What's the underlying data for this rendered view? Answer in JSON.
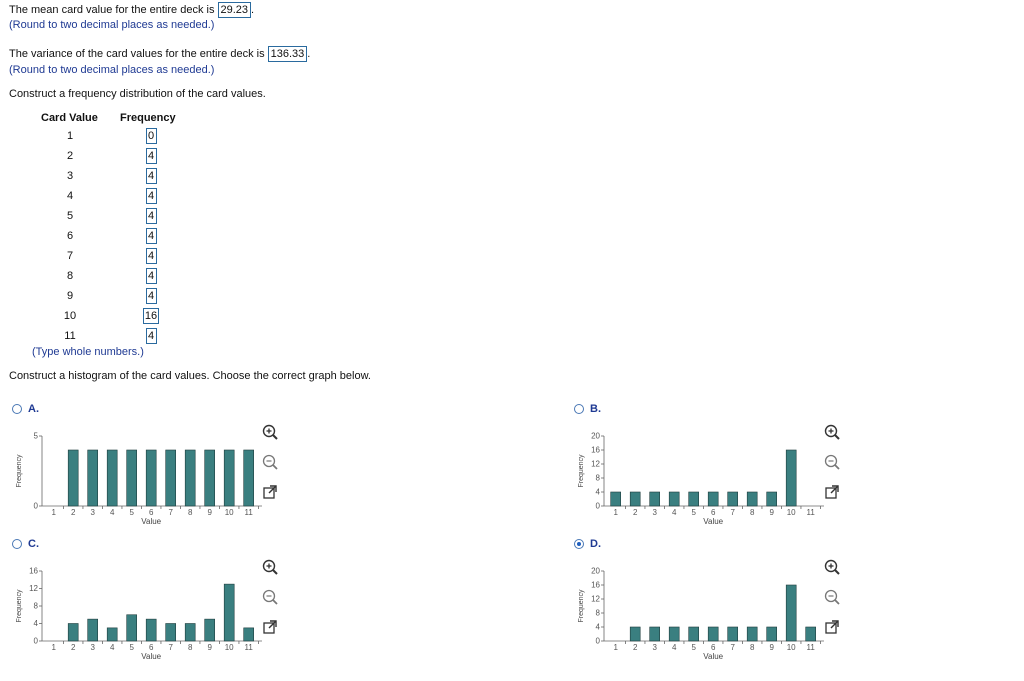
{
  "questions": {
    "mean": {
      "prefix": "The mean card value for the entire deck is",
      "answer": "29.23",
      "suffix": ".",
      "hint": "(Round to two decimal places as needed.)"
    },
    "variance": {
      "prefix": "The variance of the card values for the entire deck is",
      "answer": "136.33",
      "suffix": ".",
      "hint": "(Round to two decimal places as needed.)"
    },
    "freq_prompt": "Construct a frequency distribution of the card values.",
    "freq_hint": "(Type whole numbers.)",
    "hist_prompt": "Construct a histogram of the card values. Choose the correct graph below."
  },
  "frequency_table": {
    "col_value": "Card Value",
    "col_freq": "Frequency",
    "rows": [
      {
        "value": "1",
        "freq": "0"
      },
      {
        "value": "2",
        "freq": "4"
      },
      {
        "value": "3",
        "freq": "4"
      },
      {
        "value": "4",
        "freq": "4"
      },
      {
        "value": "5",
        "freq": "4"
      },
      {
        "value": "6",
        "freq": "4"
      },
      {
        "value": "7",
        "freq": "4"
      },
      {
        "value": "8",
        "freq": "4"
      },
      {
        "value": "9",
        "freq": "4"
      },
      {
        "value": "10",
        "freq": "16"
      },
      {
        "value": "11",
        "freq": "4"
      }
    ]
  },
  "options": [
    {
      "label": "A.",
      "selected": false
    },
    {
      "label": "B.",
      "selected": false
    },
    {
      "label": "C.",
      "selected": false
    },
    {
      "label": "D.",
      "selected": true
    }
  ],
  "icons": [
    "zoom-in-icon",
    "zoom-out-icon",
    "open-new-window-icon"
  ],
  "colors": {
    "bar": "#3a7f80",
    "bar_stroke": "#1e3d3d",
    "radio": "#1f5fbf"
  },
  "chart_data": [
    {
      "type": "bar",
      "option": "A.",
      "categories": [
        "1",
        "2",
        "3",
        "4",
        "5",
        "6",
        "7",
        "8",
        "9",
        "10",
        "11"
      ],
      "values": [
        0,
        4,
        4,
        4,
        4,
        4,
        4,
        4,
        4,
        4,
        4
      ],
      "ylim": [
        0,
        5
      ],
      "yticks": [
        0,
        5
      ],
      "xlabel": "Value",
      "ylabel": "Frequency"
    },
    {
      "type": "bar",
      "option": "B.",
      "categories": [
        "1",
        "2",
        "3",
        "4",
        "5",
        "6",
        "7",
        "8",
        "9",
        "10",
        "11"
      ],
      "values": [
        4,
        4,
        4,
        4,
        4,
        4,
        4,
        4,
        4,
        16,
        0
      ],
      "ylim": [
        0,
        20
      ],
      "yticks": [
        0,
        4,
        8,
        12,
        16,
        20
      ],
      "xlabel": "Value",
      "ylabel": "Frequency"
    },
    {
      "type": "bar",
      "option": "C.",
      "categories": [
        "1",
        "2",
        "3",
        "4",
        "5",
        "6",
        "7",
        "8",
        "9",
        "10",
        "11"
      ],
      "values": [
        0,
        4,
        5,
        3,
        6,
        5,
        4,
        4,
        5,
        13,
        3
      ],
      "ylim": [
        0,
        16
      ],
      "yticks": [
        0,
        4,
        8,
        12,
        16
      ],
      "xlabel": "Value",
      "ylabel": "Frequency"
    },
    {
      "type": "bar",
      "option": "D.",
      "categories": [
        "1",
        "2",
        "3",
        "4",
        "5",
        "6",
        "7",
        "8",
        "9",
        "10",
        "11"
      ],
      "values": [
        0,
        4,
        4,
        4,
        4,
        4,
        4,
        4,
        4,
        16,
        4
      ],
      "ylim": [
        0,
        20
      ],
      "yticks": [
        0,
        4,
        8,
        12,
        16,
        20
      ],
      "xlabel": "Value",
      "ylabel": "Frequency"
    }
  ]
}
